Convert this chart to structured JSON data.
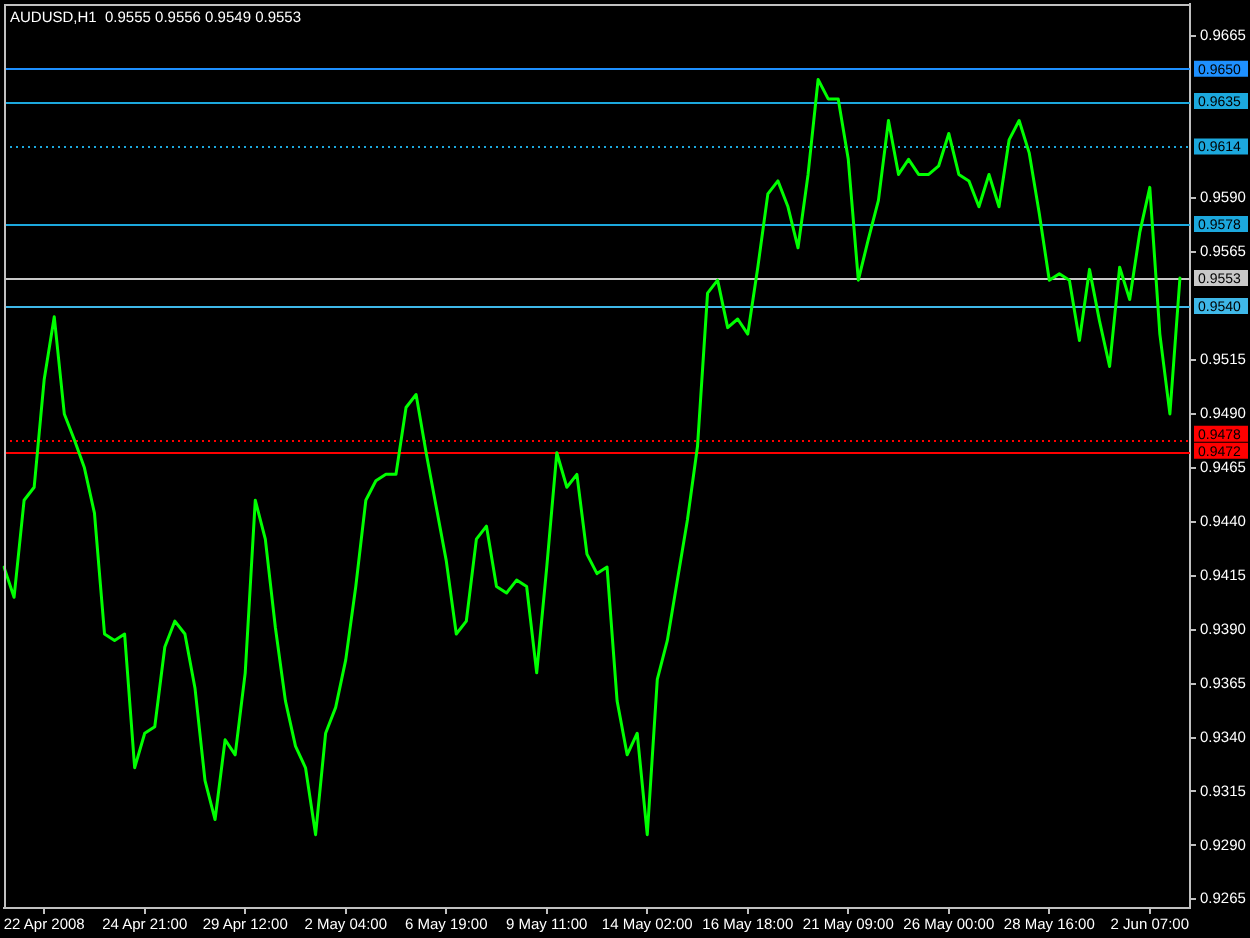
{
  "chart_data": {
    "type": "line",
    "title": "AUDUSD,H1  0.9555 0.9556 0.9549 0.9553",
    "categories": [
      null,
      null,
      null,
      null,
      "22 Apr 2008",
      null,
      null,
      null,
      null,
      null,
      null,
      null,
      null,
      null,
      "24 Apr 21:00",
      null,
      null,
      null,
      null,
      null,
      null,
      null,
      null,
      null,
      "29 Apr 12:00",
      null,
      null,
      null,
      null,
      null,
      null,
      null,
      null,
      null,
      "2 May 04:00",
      null,
      null,
      null,
      null,
      null,
      null,
      null,
      null,
      null,
      "6 May 19:00",
      null,
      null,
      null,
      null,
      null,
      null,
      null,
      null,
      null,
      "9 May 11:00",
      null,
      null,
      null,
      null,
      null,
      null,
      null,
      null,
      null,
      "14 May 02:00",
      null,
      null,
      null,
      null,
      null,
      null,
      null,
      null,
      null,
      "16 May 18:00",
      null,
      null,
      null,
      null,
      null,
      null,
      null,
      null,
      null,
      "21 May 09:00",
      null,
      null,
      null,
      null,
      null,
      null,
      null,
      null,
      null,
      "26 May 00:00",
      null,
      null,
      null,
      null,
      null,
      null,
      null,
      null,
      null,
      "28 May 16:00",
      null,
      null,
      null,
      null,
      null,
      null,
      null,
      null,
      null,
      "2 Jun 07:00",
      null,
      null,
      null,
      null
    ],
    "series": [
      {
        "color": "#00ff00",
        "values": [
          0.9419,
          0.9405,
          0.945,
          0.9456,
          0.9506,
          0.9535,
          0.949,
          0.9478,
          0.9465,
          0.9444,
          0.9388,
          0.9385,
          0.9388,
          0.9326,
          0.9342,
          0.9345,
          0.9382,
          0.9394,
          0.9388,
          0.9363,
          0.932,
          0.9302,
          0.9339,
          0.9332,
          0.937,
          0.945,
          0.9432,
          0.9391,
          0.9357,
          0.9336,
          0.9326,
          0.9295,
          0.9342,
          0.9354,
          0.9376,
          0.941,
          0.945,
          0.9459,
          0.9462,
          0.9462,
          0.9493,
          0.9499,
          0.9472,
          0.9447,
          0.9422,
          0.9388,
          0.9394,
          0.9432,
          0.9438,
          0.941,
          0.9407,
          0.9413,
          0.941,
          0.937,
          0.9419,
          0.9472,
          0.9456,
          0.9462,
          0.9425,
          0.9416,
          0.9419,
          0.9357,
          0.9332,
          0.9342,
          0.9295,
          0.9367,
          0.9385,
          0.9413,
          0.9441,
          0.9475,
          0.9546,
          0.9552,
          0.953,
          0.9534,
          0.9527,
          0.9558,
          0.9592,
          0.9598,
          0.9586,
          0.9567,
          0.9601,
          0.9645,
          0.9636,
          0.9636,
          0.9608,
          0.9552,
          0.9571,
          0.9589,
          0.9626,
          0.9601,
          0.9608,
          0.9601,
          0.9601,
          0.9605,
          0.962,
          0.9601,
          0.9598,
          0.9586,
          0.9601,
          0.9586,
          0.9617,
          0.9626,
          0.9611,
          0.9583,
          0.9552,
          0.9555,
          0.9552,
          0.9524,
          0.9557,
          0.9533,
          0.9512,
          0.9558,
          0.9543,
          0.9574,
          0.9595,
          0.9527,
          0.949,
          0.9553,
          null
        ]
      }
    ],
    "ylim": [
      0.9261,
      0.968
    ],
    "yticks": [
      0.9665,
      {
        "value": 0.959,
        "label": "0.9590"
      },
      0.9565,
      0.9515,
      {
        "value": 0.949,
        "label": "0.9490"
      },
      0.9465,
      {
        "value": 0.944,
        "label": "0.9440"
      },
      0.9415,
      {
        "value": 0.939,
        "label": "0.9390"
      },
      0.9365,
      {
        "value": 0.934,
        "label": "0.9340"
      },
      0.9315,
      {
        "value": 0.929,
        "label": "0.9290"
      },
      0.9265
    ],
    "ref_lines": [
      {
        "axis": "y",
        "value": 0.965,
        "label": "0.9650",
        "color": "#1e90ff"
      },
      {
        "axis": "y",
        "value": 0.9635,
        "label": "0.9635",
        "color": "#1ca8dd"
      },
      {
        "axis": "y",
        "value": 0.9614,
        "label": "0.9614",
        "color": "#1ca8dd",
        "line_style": "dotted"
      },
      {
        "axis": "y",
        "value": 0.9578,
        "label": "0.9578",
        "color": "#1ca8dd"
      },
      {
        "axis": "y",
        "value": 0.9553,
        "label": "0.9553",
        "color": "#c8c8c8"
      },
      {
        "axis": "y",
        "value": 0.954,
        "label": "0.9540",
        "color": "#3fb8e8"
      },
      {
        "axis": "y",
        "value": 0.9478,
        "label": "0.9478",
        "color": "#ff0000",
        "line_style": "dotted"
      },
      {
        "axis": "y",
        "value": 0.9472,
        "label": "0.9472",
        "color": "#ff0000"
      }
    ],
    "grid": false,
    "legend": false,
    "marker": "none",
    "line_style": "solid"
  }
}
